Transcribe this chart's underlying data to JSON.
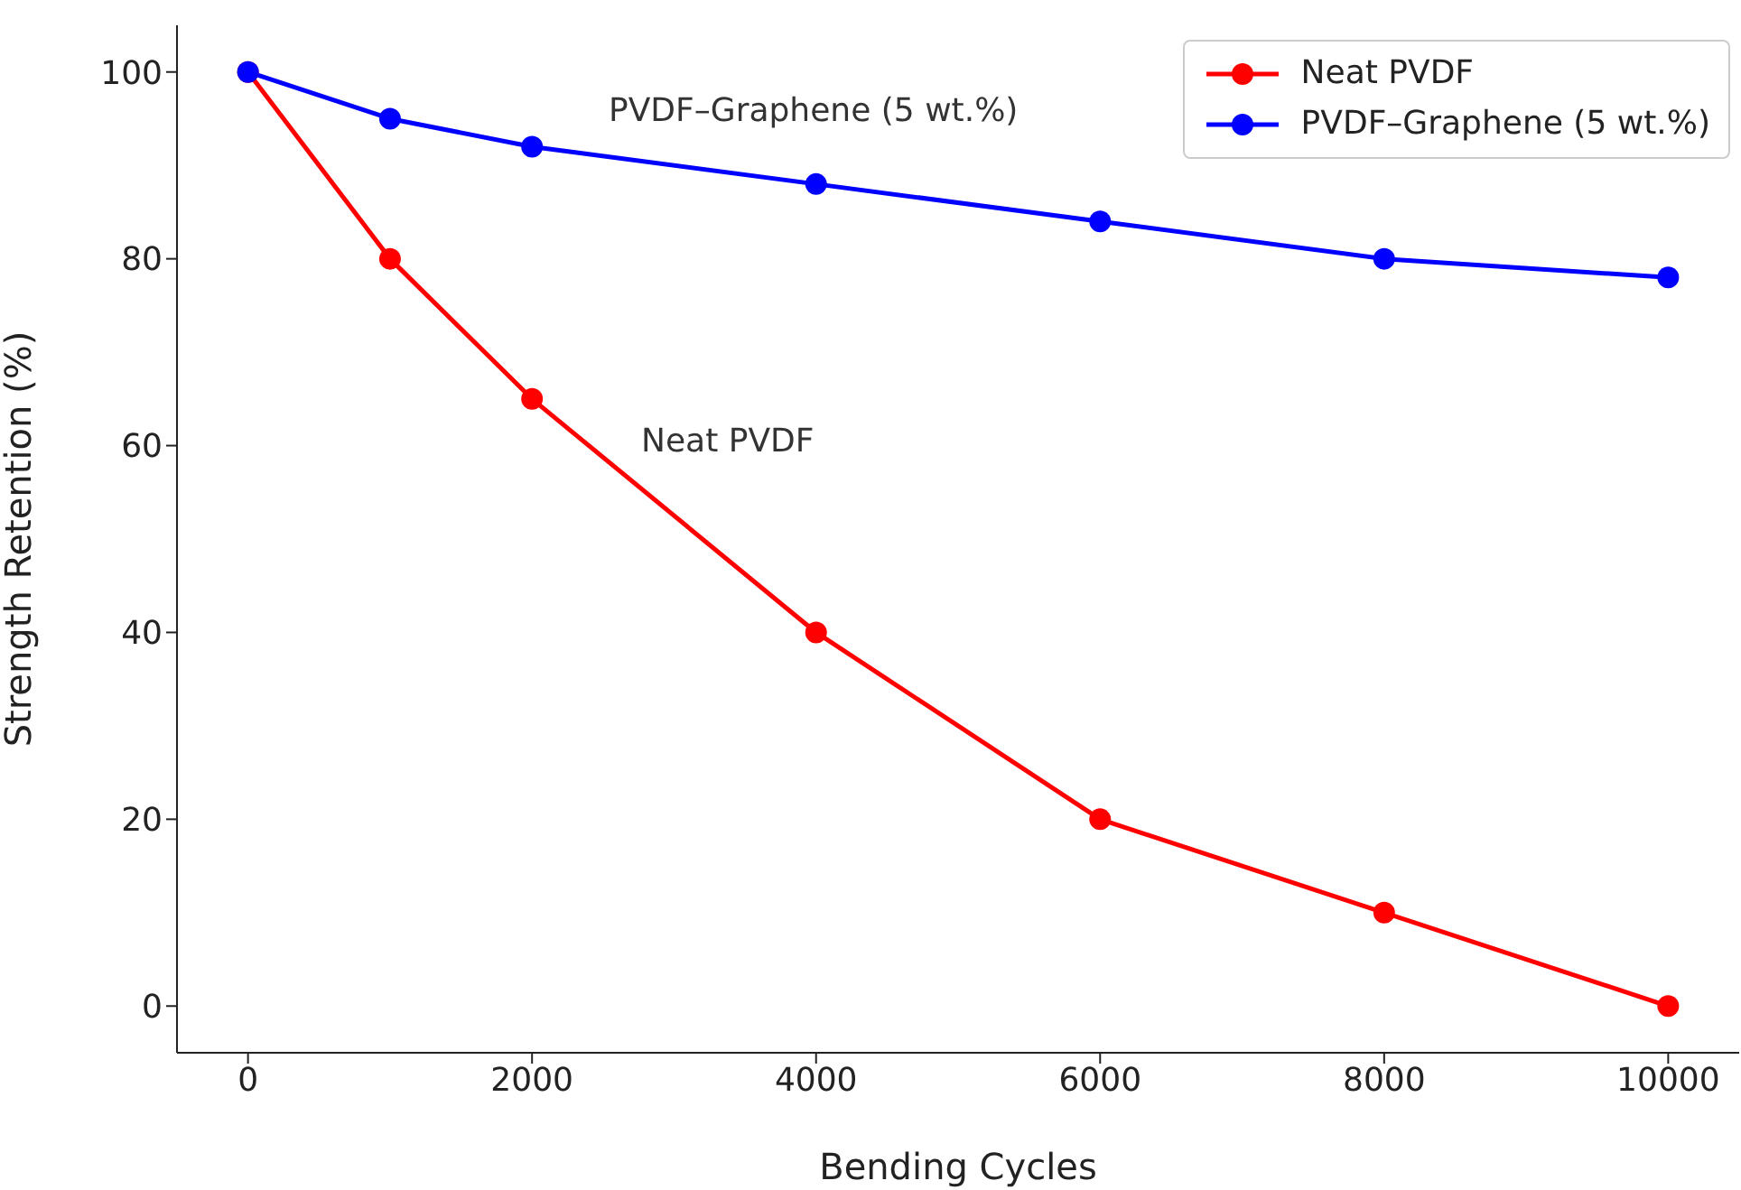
{
  "chart_data": {
    "type": "line",
    "xlabel": "Bending Cycles",
    "ylabel": "Strength Retention (%)",
    "x": [
      0,
      1000,
      2000,
      4000,
      6000,
      8000,
      10000
    ],
    "series": [
      {
        "name": "Neat PVDF",
        "color": "#ff0000",
        "values": [
          100,
          80,
          65,
          40,
          20,
          10,
          0
        ]
      },
      {
        "name": "PVDF–Graphene (5 wt.%)",
        "color": "#0000ff",
        "values": [
          100,
          95,
          92,
          88,
          84,
          80,
          78
        ]
      }
    ],
    "xlim": [
      -500,
      10500
    ],
    "xticks": [
      0,
      2000,
      4000,
      6000,
      8000,
      10000
    ],
    "ylim": [
      -5,
      105
    ],
    "yticks": [
      0,
      20,
      40,
      60,
      80,
      100
    ],
    "annotations": [
      "PVDF–Graphene (5 wt.%)",
      "Neat PVDF"
    ],
    "grid": false,
    "legend": "top right",
    "marker": "circle",
    "line_style": "solid"
  }
}
